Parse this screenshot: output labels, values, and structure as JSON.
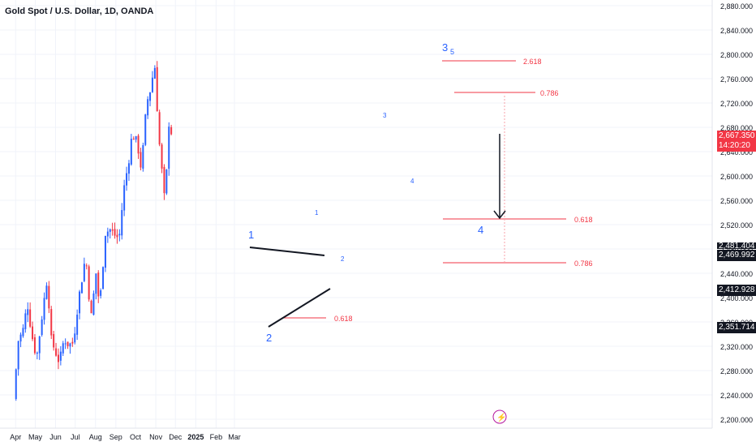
{
  "title": "Gold Spot / U.S. Dollar, 1D, OANDA",
  "colors": {
    "up": "#2962ff",
    "down": "#f23645",
    "axis_text": "#131722",
    "grid": "#f0f3fa",
    "fib": "#f23645",
    "wave": "#2962ff"
  },
  "price_badges": {
    "current": "2,667.350",
    "countdown": "14:20:20",
    "level_a": "2,481.404",
    "level_b": "2,469.992",
    "level_c": "2,412.928",
    "level_d": "2,351.714"
  },
  "fib_labels": {
    "f1": "0.618",
    "f2": "2.618",
    "f3": "0.786",
    "f4": "0.618",
    "f5": "0.786"
  },
  "wave_labels": {
    "w1a": "1",
    "w2a": "2",
    "w1b": "1",
    "w2b": "2",
    "w3a": "3",
    "w4a": "4",
    "w3b": "3",
    "w5": "5",
    "w4b": "4"
  },
  "chart_data": {
    "type": "candlestick",
    "title": "Gold Spot / U.S. Dollar, 1D, OANDA",
    "x_ticks": [
      "Apr",
      "May",
      "Jun",
      "Jul",
      "Aug",
      "Sep",
      "Oct",
      "Nov",
      "Dec",
      "2025",
      "Feb",
      "Mar"
    ],
    "y_ticks": [
      "2,200.000",
      "2,240.000",
      "2,280.000",
      "2,320.000",
      "2,360.000",
      "2,400.000",
      "2,440.000",
      "2,480.000",
      "2,520.000",
      "2,560.000",
      "2,600.000",
      "2,640.000",
      "2,680.000",
      "2,720.000",
      "2,760.000",
      "2,800.000",
      "2,840.000",
      "2,880.000"
    ],
    "ylim": [
      2195,
      2890
    ],
    "close_path": [
      [
        "2024-03-29",
        2233
      ],
      [
        "2024-04-05",
        2329
      ],
      [
        "2024-04-12",
        2345
      ],
      [
        "2024-04-19",
        2391
      ],
      [
        "2024-04-26",
        2337
      ],
      [
        "2024-05-03",
        2301
      ],
      [
        "2024-05-10",
        2360
      ],
      [
        "2024-05-20",
        2440
      ],
      [
        "2024-05-24",
        2334
      ],
      [
        "2024-06-07",
        2293
      ],
      [
        "2024-06-14",
        2333
      ],
      [
        "2024-06-21",
        2322
      ],
      [
        "2024-06-28",
        2326
      ],
      [
        "2024-07-05",
        2390
      ],
      [
        "2024-07-17",
        2470
      ],
      [
        "2024-07-25",
        2364
      ],
      [
        "2024-08-02",
        2443
      ],
      [
        "2024-08-07",
        2382
      ],
      [
        "2024-08-16",
        2507
      ],
      [
        "2024-08-23",
        2512
      ],
      [
        "2024-08-30",
        2503
      ],
      [
        "2024-09-06",
        2497
      ],
      [
        "2024-09-13",
        2577
      ],
      [
        "2024-09-20",
        2621
      ],
      [
        "2024-09-26",
        2670
      ],
      [
        "2024-10-04",
        2652
      ],
      [
        "2024-10-10",
        2610
      ],
      [
        "2024-10-18",
        2720
      ],
      [
        "2024-10-25",
        2747
      ],
      [
        "2024-10-30",
        2788
      ],
      [
        "2024-11-06",
        2659
      ],
      [
        "2024-11-14",
        2563
      ],
      [
        "2024-11-18",
        2612
      ],
      [
        "2024-11-22",
        2712
      ],
      [
        "2024-11-25",
        2667
      ]
    ]
  }
}
